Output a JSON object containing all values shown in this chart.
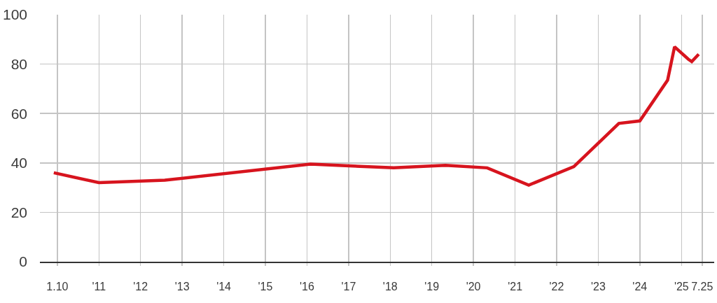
{
  "chart_data": {
    "type": "line",
    "x": [
      "2009-12",
      "2011-01",
      "2012-08",
      "2016-02",
      "2018-02",
      "2019-05",
      "2020-05",
      "2021-05",
      "2022-06",
      "2023-07",
      "2024-01",
      "2024-09",
      "2024-11",
      "2025-03",
      "2025-04",
      "2025-06"
    ],
    "series": [
      {
        "color": "#d7141e",
        "values": [
          36,
          32,
          33,
          39.5,
          38,
          39,
          38,
          31,
          38.5,
          56,
          57,
          73.5,
          87,
          82,
          81,
          84
        ]
      }
    ],
    "xlim": [
      "2009-08-01",
      "2025-10-15"
    ],
    "xticks": [
      {
        "value": "2010-01",
        "label": "1.10"
      },
      {
        "value": "2011-01",
        "label": "'11"
      },
      {
        "value": "2012-01",
        "label": "'12"
      },
      {
        "value": "2013-01",
        "label": "'13"
      },
      {
        "value": "2014-01",
        "label": "'14"
      },
      {
        "value": "2015-01",
        "label": "'15"
      },
      {
        "value": "2016-01",
        "label": "'16"
      },
      {
        "value": "2017-01",
        "label": "'17"
      },
      {
        "value": "2018-01",
        "label": "'18"
      },
      {
        "value": "2019-01",
        "label": "'19"
      },
      {
        "value": "2020-01",
        "label": "'20"
      },
      {
        "value": "2021-01",
        "label": "'21"
      },
      {
        "value": "2022-01",
        "label": "'22"
      },
      {
        "value": "2023-01",
        "label": "'23"
      },
      {
        "value": "2024-01",
        "label": "'24"
      },
      {
        "value": "2025-01",
        "label": "'25"
      },
      {
        "value": "2025-07",
        "label": "7.25"
      }
    ],
    "ylim": [
      0,
      100
    ],
    "yticks": [
      0,
      20,
      40,
      60,
      80,
      100
    ],
    "grid": true
  }
}
